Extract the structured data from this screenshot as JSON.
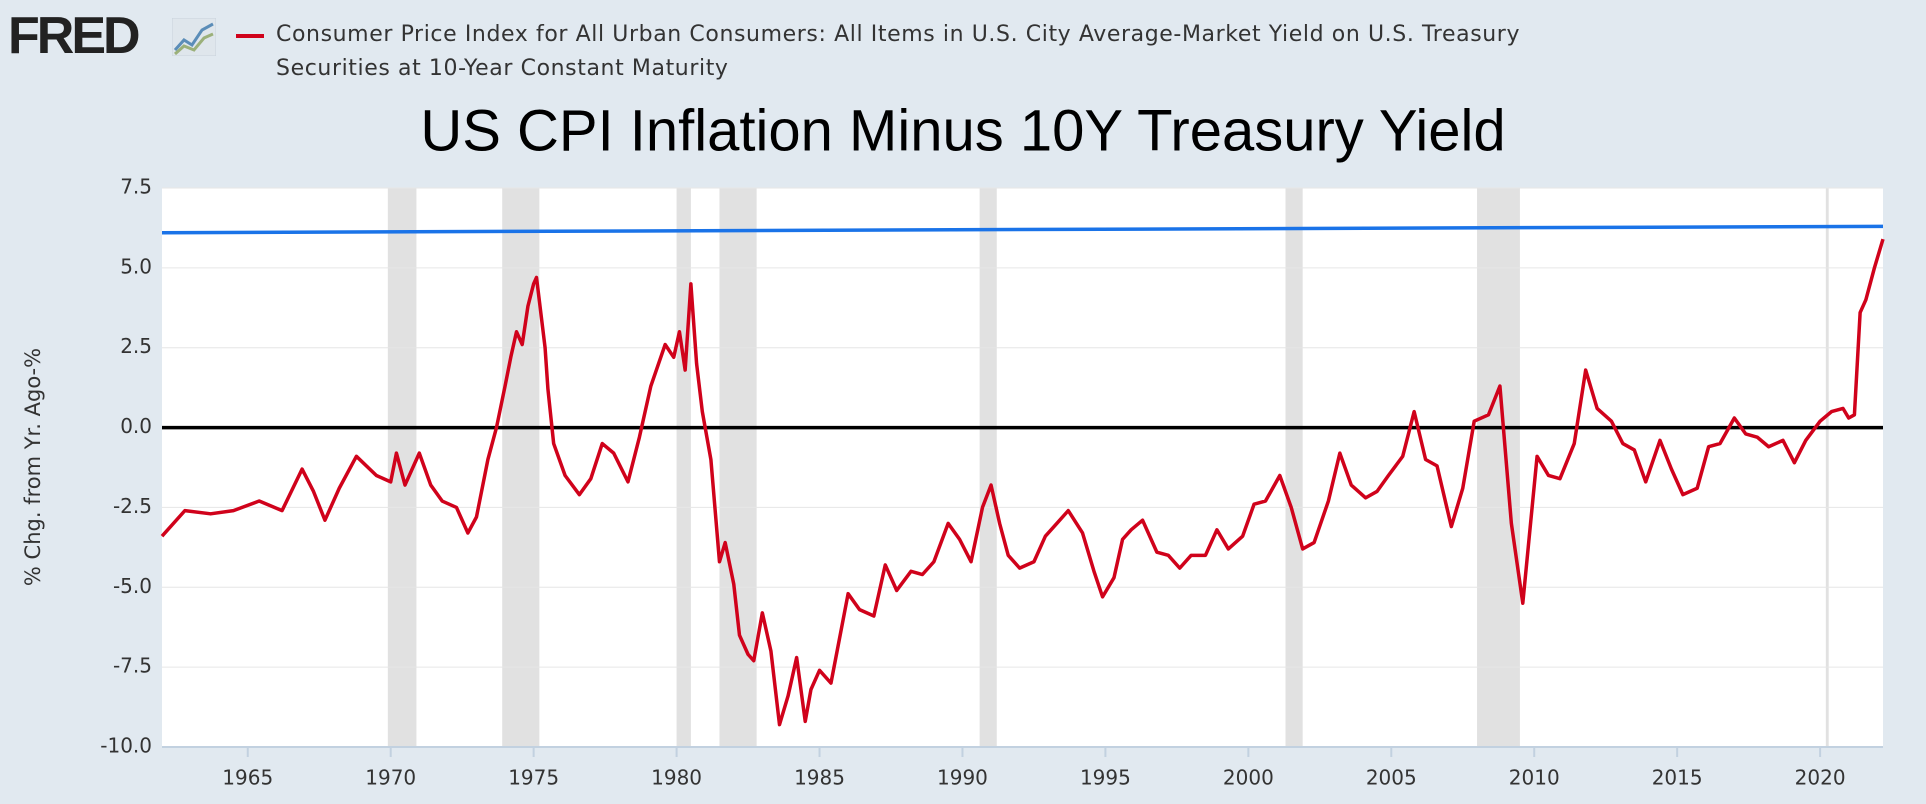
{
  "chart_data": {
    "type": "line",
    "logo": "FRED",
    "title": "US CPI Inflation Minus 10Y Treasury Yield",
    "ylabel": "% Chg. from Yr. Ago-%",
    "xlim": [
      1962.0,
      2022.2
    ],
    "xticks": [
      1965,
      1970,
      1975,
      1980,
      1985,
      1990,
      1995,
      2000,
      2005,
      2010,
      2015,
      2020
    ],
    "ylim": [
      -10,
      7.5
    ],
    "yticks": [
      {
        "value": -10,
        "label": "-10.0"
      },
      -7.5,
      {
        "value": -5,
        "label": "-5.0"
      },
      -2.5,
      {
        "value": 0,
        "label": "0.0"
      },
      2.5,
      {
        "value": 5,
        "label": "5.0"
      },
      7.5
    ],
    "grid": true,
    "reference_line": {
      "value": 0,
      "color": "#000000"
    },
    "recession_color": "#e1e1e1",
    "recessions": [
      [
        1969.9,
        1970.9
      ],
      [
        1973.9,
        1975.2
      ],
      [
        1980.0,
        1980.5
      ],
      [
        1981.5,
        1982.8
      ],
      [
        1990.6,
        1991.2
      ],
      [
        2001.3,
        2001.9
      ],
      [
        2008.0,
        2009.5
      ],
      [
        2020.2,
        2020.3
      ]
    ],
    "series": [
      {
        "name": "Consumer Price Index for All Urban Consumers: All Items in U.S. City Average-Market Yield on U.S. Treasury Securities at 10-Year Constant Maturity",
        "color": "#d0021b",
        "x": [
          1962.0,
          1962.8,
          1963.7,
          1964.5,
          1965.4,
          1966.2,
          1966.9,
          1967.3,
          1967.7,
          1968.2,
          1968.8,
          1969.5,
          1970.0,
          1970.2,
          1970.5,
          1971.0,
          1971.4,
          1971.8,
          1972.3,
          1972.7,
          1973.0,
          1973.4,
          1973.7,
          1974.0,
          1974.2,
          1974.4,
          1974.6,
          1974.8,
          1975.0,
          1975.1,
          1975.4,
          1975.5,
          1975.7,
          1976.1,
          1976.6,
          1977.0,
          1977.4,
          1977.8,
          1978.3,
          1978.7,
          1979.1,
          1979.6,
          1979.9,
          1980.1,
          1980.3,
          1980.5,
          1980.7,
          1980.9,
          1981.2,
          1981.5,
          1981.7,
          1982.0,
          1982.2,
          1982.5,
          1982.7,
          1983.0,
          1983.3,
          1983.6,
          1983.9,
          1984.2,
          1984.5,
          1984.7,
          1985.0,
          1985.4,
          1985.7,
          1986.0,
          1986.4,
          1986.9,
          1987.3,
          1987.7,
          1988.2,
          1988.6,
          1989.0,
          1989.5,
          1989.9,
          1990.3,
          1990.7,
          1991.0,
          1991.3,
          1991.6,
          1992.0,
          1992.5,
          1992.9,
          1993.3,
          1993.7,
          1994.2,
          1994.6,
          1994.9,
          1995.3,
          1995.6,
          1995.9,
          1996.3,
          1996.8,
          1997.2,
          1997.6,
          1998.0,
          1998.5,
          1998.9,
          1999.3,
          1999.8,
          2000.2,
          2000.6,
          2001.1,
          2001.5,
          2001.9,
          2002.3,
          2002.8,
          2003.2,
          2003.6,
          2004.1,
          2004.5,
          2004.9,
          2005.4,
          2005.8,
          2006.2,
          2006.6,
          2007.1,
          2007.5,
          2007.9,
          2008.4,
          2008.8,
          2009.2,
          2009.6,
          2010.1,
          2010.5,
          2010.9,
          2011.4,
          2011.8,
          2012.2,
          2012.7,
          2013.1,
          2013.5,
          2013.9,
          2014.4,
          2014.8,
          2015.2,
          2015.7,
          2016.1,
          2016.5,
          2017.0,
          2017.4,
          2017.8,
          2018.2,
          2018.7,
          2019.1,
          2019.5,
          2020.0,
          2020.4,
          2020.8,
          2021.0,
          2021.2,
          2021.4,
          2021.6,
          2021.9,
          2022.2
        ],
        "values": [
          -3.4,
          -2.6,
          -2.7,
          -2.6,
          -2.3,
          -2.6,
          -1.3,
          -2.0,
          -2.9,
          -1.9,
          -0.9,
          -1.5,
          -1.7,
          -0.8,
          -1.8,
          -0.8,
          -1.8,
          -2.3,
          -2.5,
          -3.3,
          -2.8,
          -1.0,
          0.0,
          1.3,
          2.2,
          3.0,
          2.6,
          3.8,
          4.5,
          4.7,
          2.5,
          1.2,
          -0.5,
          -1.5,
          -2.1,
          -1.6,
          -0.5,
          -0.8,
          -1.7,
          -0.3,
          1.3,
          2.6,
          2.2,
          3.0,
          1.8,
          4.5,
          2.0,
          0.5,
          -1.0,
          -4.2,
          -3.6,
          -4.9,
          -6.5,
          -7.1,
          -7.3,
          -5.8,
          -7.0,
          -9.3,
          -8.4,
          -7.2,
          -9.2,
          -8.2,
          -7.6,
          -8.0,
          -6.6,
          -5.2,
          -5.7,
          -5.9,
          -4.3,
          -5.1,
          -4.5,
          -4.6,
          -4.2,
          -3.0,
          -3.5,
          -4.2,
          -2.5,
          -1.8,
          -3.0,
          -4.0,
          -4.4,
          -4.2,
          -3.4,
          -3.0,
          -2.6,
          -3.3,
          -4.5,
          -5.3,
          -4.7,
          -3.5,
          -3.2,
          -2.9,
          -3.9,
          -4.0,
          -4.4,
          -4.0,
          -4.0,
          -3.2,
          -3.8,
          -3.4,
          -2.4,
          -2.3,
          -1.5,
          -2.5,
          -3.8,
          -3.6,
          -2.3,
          -0.8,
          -1.8,
          -2.2,
          -2.0,
          -1.5,
          -0.9,
          0.5,
          -1.0,
          -1.2,
          -3.1,
          -1.9,
          0.2,
          0.4,
          1.3,
          -3.0,
          -5.5,
          -0.9,
          -1.5,
          -1.6,
          -0.5,
          1.8,
          0.6,
          0.2,
          -0.5,
          -0.7,
          -1.7,
          -0.4,
          -1.3,
          -2.1,
          -1.9,
          -0.6,
          -0.5,
          0.3,
          -0.2,
          -0.3,
          -0.6,
          -0.4,
          -1.1,
          -0.4,
          0.2,
          0.5,
          0.6,
          0.3,
          0.4,
          3.6,
          4.0,
          5.0,
          5.9
        ]
      },
      {
        "color": "#1a73e8",
        "x": [
          1962.0,
          2022.2
        ],
        "values": [
          6.1,
          6.3
        ]
      }
    ]
  }
}
